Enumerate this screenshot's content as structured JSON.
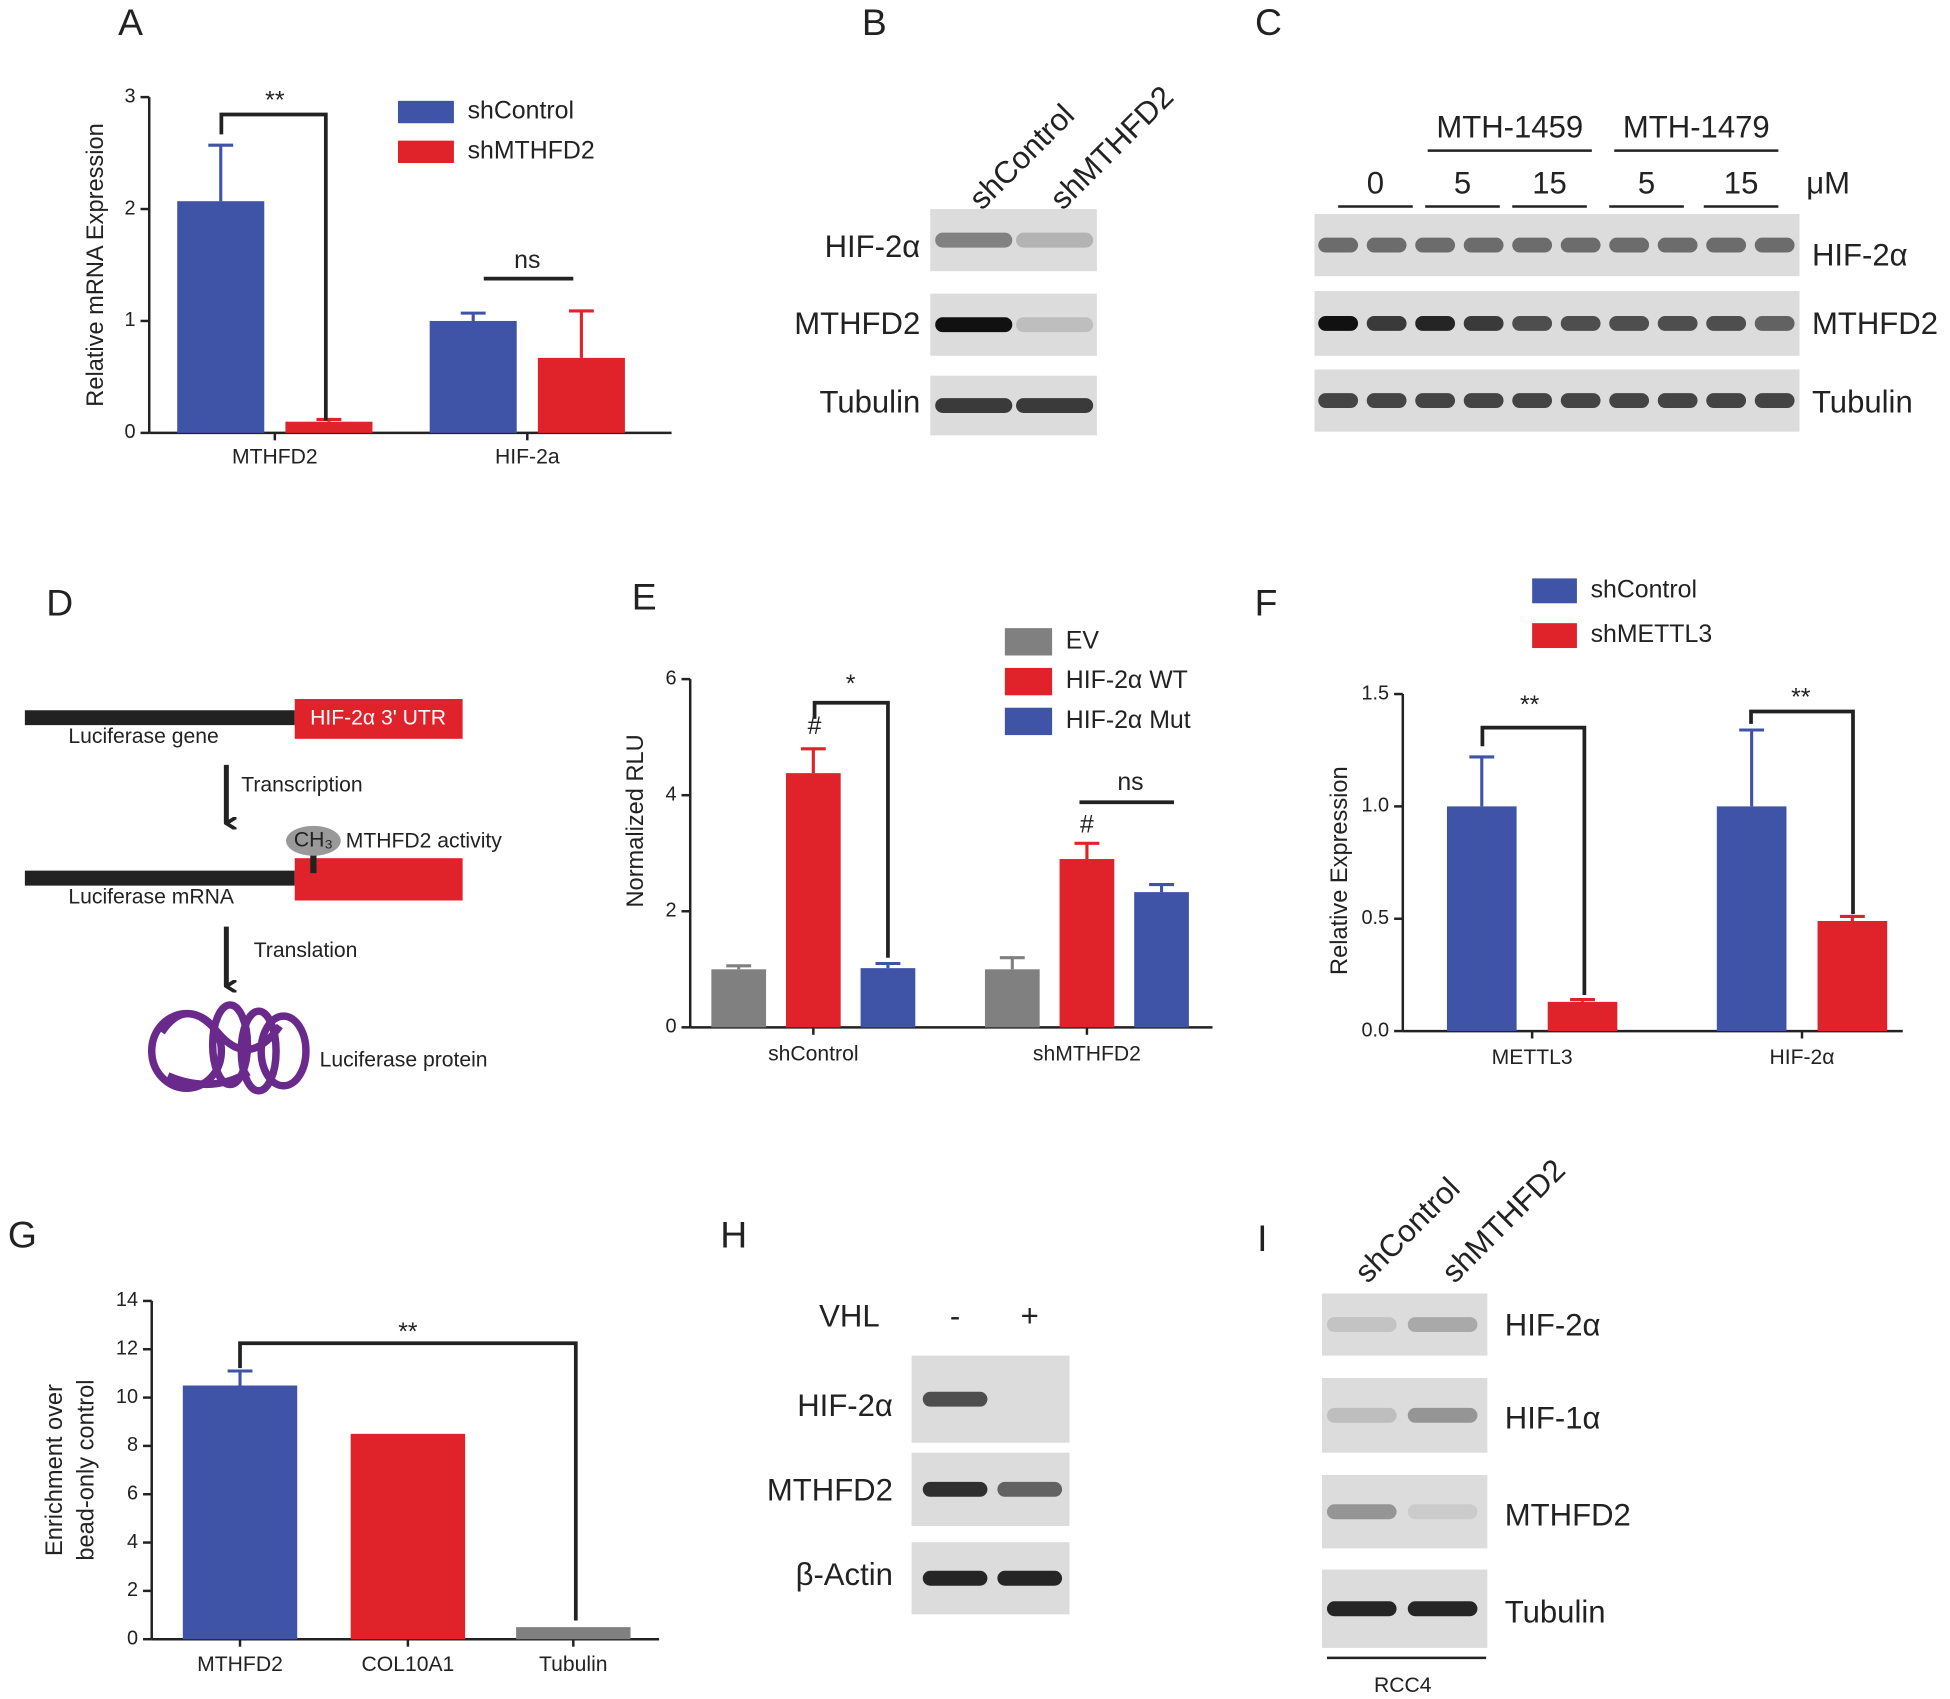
{
  "panel_letters": [
    "A",
    "B",
    "C",
    "D",
    "E",
    "F",
    "G",
    "H",
    "I"
  ],
  "chart_data": [
    {
      "type": "bar",
      "y_label": [
        "Relative mRNA Expression"
      ],
      "categories": [
        "MTHFD2",
        "HIF-2a"
      ],
      "series": [
        {
          "name": "shControl",
          "color": "#3f54a6",
          "values": [
            2.07,
            1.0
          ],
          "errors": [
            0.5,
            0.07
          ]
        },
        {
          "name": "shMTHFD2",
          "color": "#e0222a",
          "values": [
            0.1,
            0.67
          ],
          "errors": [
            0.02,
            0.42
          ]
        }
      ],
      "ylim": [
        0,
        3
      ],
      "yticks": [
        0,
        1,
        2,
        3
      ],
      "annotations": [
        "**",
        "ns"
      ]
    },
    {
      "type": "bar",
      "y_label": [
        "Normalized RLU"
      ],
      "categories": [
        "shControl",
        "shMTHFD2"
      ],
      "series": [
        {
          "name": "EV",
          "color": "#808080",
          "values": [
            1.0,
            1.0
          ],
          "errors": [
            0.06,
            0.2
          ]
        },
        {
          "name": "HIF-2α WT",
          "color": "#e0222a",
          "values": [
            4.38,
            2.9
          ],
          "errors": [
            0.42,
            0.27
          ]
        },
        {
          "name": "HIF-2α Mut",
          "color": "#3f54a6",
          "values": [
            1.02,
            2.33
          ],
          "errors": [
            0.08,
            0.13
          ]
        }
      ],
      "ylim": [
        0,
        6
      ],
      "yticks": [
        0,
        2,
        4,
        6
      ],
      "annotations": [
        "#",
        "#",
        "*",
        "ns"
      ]
    },
    {
      "type": "bar",
      "y_label": [
        "Relative Expression"
      ],
      "categories": [
        "METTL3",
        "HIF-2α"
      ],
      "series": [
        {
          "name": "shControl",
          "color": "#3f54a6",
          "values": [
            1.0,
            1.0
          ],
          "errors": [
            0.22,
            0.34
          ]
        },
        {
          "name": "shMETTL3",
          "color": "#e0222a",
          "values": [
            0.13,
            0.49
          ],
          "errors": [
            0.01,
            0.02
          ]
        }
      ],
      "ylim": [
        0,
        1.5
      ],
      "yticks": [
        {
          "value": 0,
          "label": "0.0"
        },
        0.5,
        {
          "value": 1,
          "label": "1.0"
        },
        1.5
      ],
      "annotations": [
        "**",
        "**"
      ]
    },
    {
      "type": "bar",
      "y_label": [
        "Enrichment over",
        "bead-only control"
      ],
      "categories": [
        "MTHFD2",
        "COL10A1",
        "Tubulin"
      ],
      "series": [
        {
          "colors": [
            "#3f54a6",
            "#e0222a",
            "#808080"
          ],
          "values": [
            10.5,
            8.5,
            0.5
          ],
          "errors": [
            0.6,
            0,
            0
          ]
        }
      ],
      "ylim": [
        0,
        14
      ],
      "yticks": [
        0,
        2,
        4,
        6,
        8,
        10,
        12,
        14
      ],
      "annotations": [
        "**"
      ]
    }
  ],
  "panel_b": {
    "lanes": [
      "shControl",
      "shMTHFD2"
    ],
    "rows": [
      "HIF-2α",
      "MTHFD2",
      "Tubulin"
    ]
  },
  "panel_c": {
    "groups": [
      "MTH-1459",
      "MTH-1479"
    ],
    "doses": [
      "0",
      "5",
      "15",
      "5",
      "15"
    ],
    "unit": "μM",
    "rows": [
      "HIF-2α",
      "MTHFD2",
      "Tubulin"
    ]
  },
  "panel_d": {
    "utr": "HIF-2α 3' UTR",
    "gene": "Luciferase gene",
    "step1": "Transcription",
    "mark": "CH₃",
    "activity": "MTHFD2 activity",
    "mrna": "Luciferase mRNA",
    "step2": "Translation",
    "protein": "Luciferase protein"
  },
  "panel_h": {
    "factor": "VHL",
    "lanes": [
      "-",
      "+"
    ],
    "rows": [
      "HIF-2α",
      "MTHFD2",
      "β-Actin"
    ]
  },
  "panel_i": {
    "lanes": [
      "shControl",
      "shMTHFD2"
    ],
    "rows": [
      "HIF-2α",
      "HIF-1α",
      "MTHFD2",
      "Tubulin"
    ],
    "cell_line": "RCC4"
  }
}
